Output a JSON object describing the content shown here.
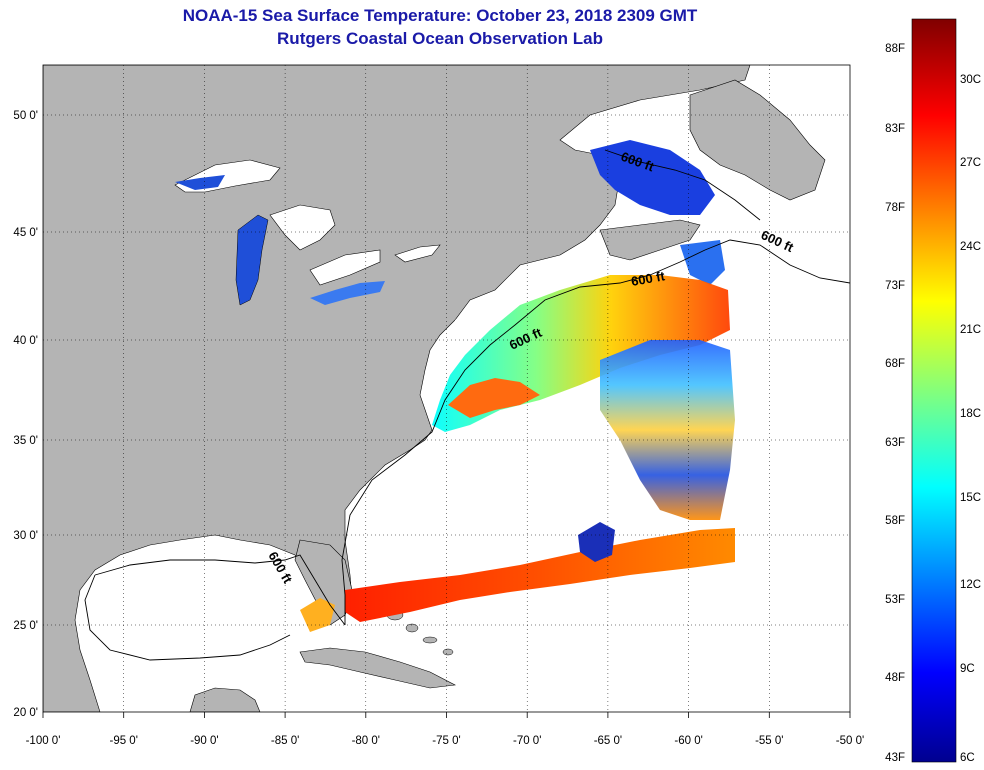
{
  "header": {
    "title_line1": "NOAA-15 Sea Surface Temperature:  October 23, 2018 2309 GMT",
    "title_line2": "Rutgers Coastal Ocean Observation Lab"
  },
  "map": {
    "lon_ticks": [
      "-100 0'",
      "-95 0'",
      "-90 0'",
      "-85 0'",
      "-80 0'",
      "-75 0'",
      "-70 0'",
      "-65 0'",
      "-60 0'",
      "-55 0'",
      "-50 0'"
    ],
    "lat_ticks": [
      "50 0'",
      "45 0'",
      "40 0'",
      "35 0'",
      "30 0'",
      "25 0'",
      "20 0'"
    ],
    "contour_labels": [
      "600 ft",
      "600 ft",
      "600 ft",
      "600 ft",
      "600 ft"
    ],
    "colors": {
      "land": "#b4b4b4",
      "no_data": "#ffffff",
      "grid": "#000000"
    }
  },
  "colorbar": {
    "f_labels": [
      "88F",
      "83F",
      "78F",
      "73F",
      "68F",
      "63F",
      "58F",
      "53F",
      "48F",
      "43F"
    ],
    "c_labels": [
      "30C",
      "27C",
      "24C",
      "21C",
      "18C",
      "15C",
      "12C",
      "9C",
      "6C"
    ],
    "colormap": [
      "#00008f",
      "#0000ff",
      "#00ffff",
      "#ffff00",
      "#ff0000",
      "#800000"
    ]
  }
}
